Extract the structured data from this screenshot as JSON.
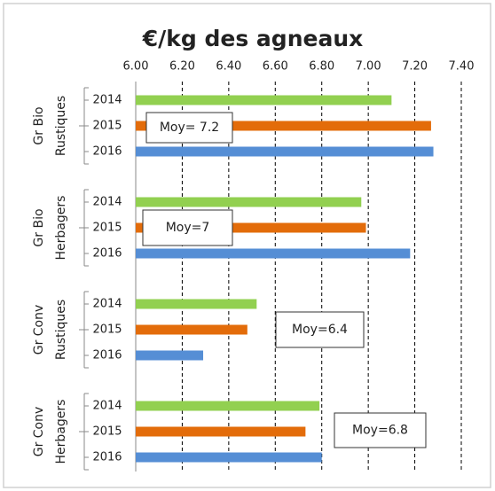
{
  "chart_data": {
    "type": "bar",
    "orientation": "horizontal",
    "title": "€/kg des agneaux",
    "categories": [
      [
        "Gr Bio",
        "Rustiques"
      ],
      [
        "Gr Bio",
        "Herbagers"
      ],
      [
        "Gr Conv",
        "Rustiques"
      ],
      [
        "Gr Conv",
        "Herbagers"
      ]
    ],
    "series": [
      {
        "name": "2014",
        "color": "#92d050",
        "values": [
          7.1,
          6.97,
          6.52,
          6.79
        ]
      },
      {
        "name": "2015",
        "color": "#e36c0a",
        "values": [
          7.27,
          6.99,
          6.48,
          6.73
        ]
      },
      {
        "name": "2016",
        "color": "#558ed5",
        "values": [
          7.28,
          7.18,
          6.29,
          6.8
        ]
      }
    ],
    "annotations": [
      "Moy= 7.2",
      "Moy=7",
      "Moy=6.4",
      "Moy=6.8"
    ],
    "xlim": [
      6.0,
      7.4
    ],
    "xticks": [
      {
        "value": 6.0,
        "label": "6.00"
      },
      {
        "value": 6.2,
        "label": "6.20"
      },
      {
        "value": 6.4,
        "label": "6.40"
      },
      {
        "value": 6.6,
        "label": "6.60"
      },
      {
        "value": 6.8,
        "label": "6.80"
      },
      {
        "value": 7.0,
        "label": "7.00"
      },
      {
        "value": 7.2,
        "label": "7.20"
      },
      {
        "value": 7.4,
        "label": "7.40"
      }
    ],
    "grid": true
  }
}
